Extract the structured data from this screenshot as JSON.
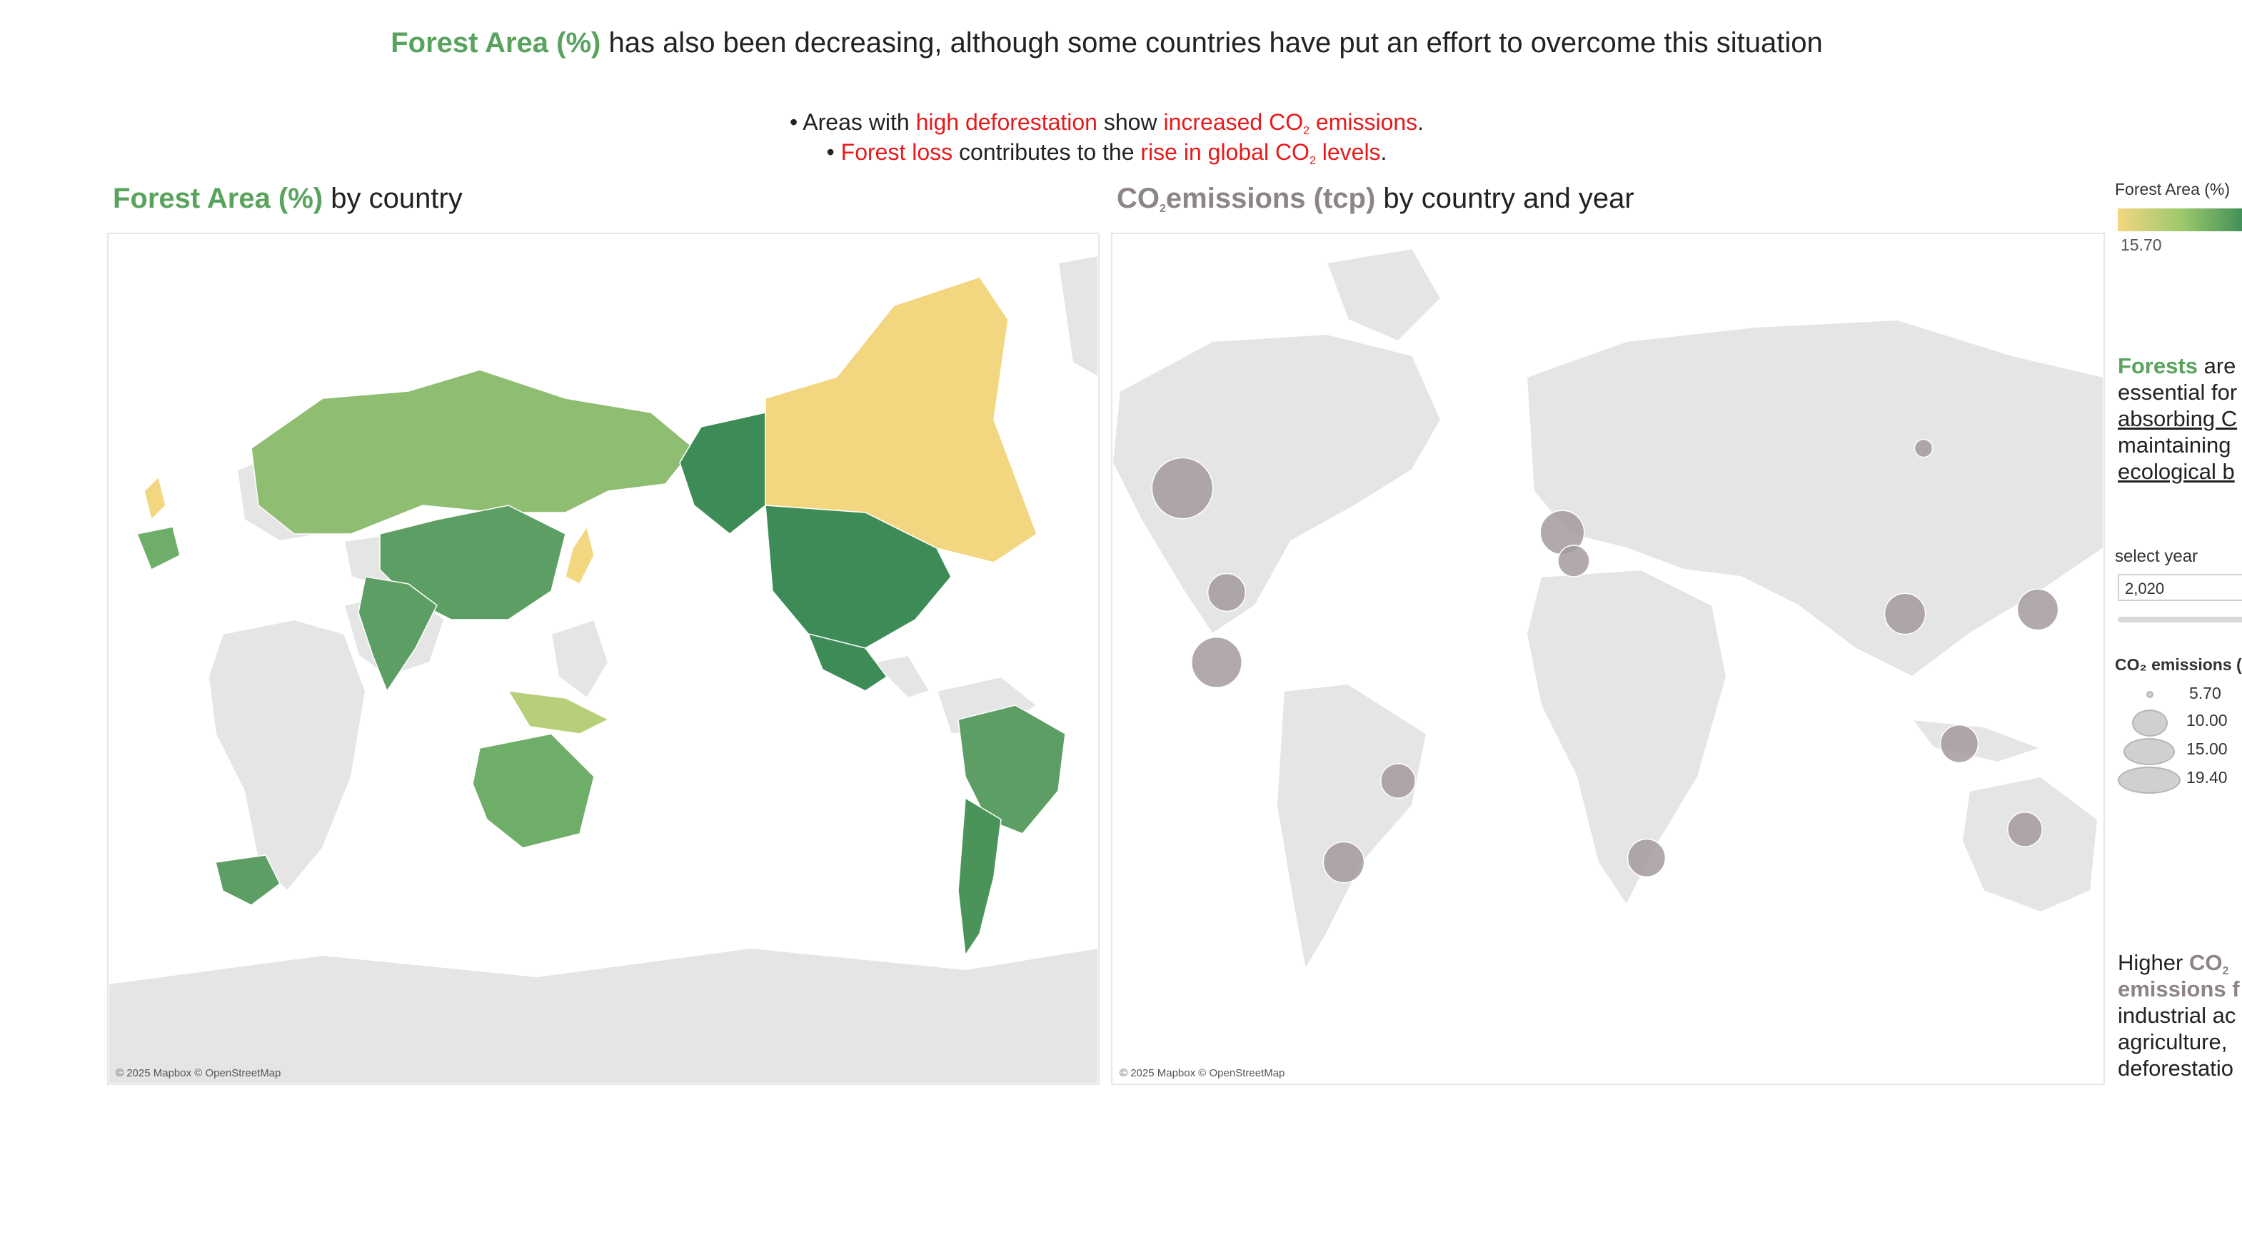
{
  "headline": {
    "highlight": "Forest Area (%)",
    "rest": " has also been decreasing, although some countries have put an effort to overcome this situation"
  },
  "bullets": {
    "b1_pre": "• Areas with ",
    "b1_red1": "high deforestation",
    "b1_mid": " show ",
    "b1_red2": "increased CO",
    "b1_sub": "2",
    "b1_red3": " emissions",
    "b1_end": ".",
    "b2_pre": "• ",
    "b2_red1": "Forest loss",
    "b2_mid": " contributes to the ",
    "b2_red2": "rise in global CO",
    "b2_sub": "2",
    "b2_red3": " levels",
    "b2_end": "."
  },
  "left_panel": {
    "title_highlight": "Forest Area (%)",
    "title_rest": " by country",
    "credit": "© 2025 Mapbox © OpenStreetMap"
  },
  "right_panel": {
    "title_co": "CO",
    "title_sub": "2",
    "title_highlight": "emissions (tcp)",
    "title_rest": " by country and year",
    "credit": "© 2025 Mapbox © OpenStreetMap"
  },
  "legend": {
    "color_title": "Forest Area (%)",
    "color_min": "15.70",
    "colors": {
      "low": "#f3d680",
      "mid": "#9cc96b",
      "high": "#3d8c57",
      "bubble": "#a39a9b",
      "land": "#e5e5e5"
    },
    "year_label": "select year",
    "year_value": "2,020",
    "size_title": "CO₂ emissions (",
    "size_values": [
      "5.70",
      "10.00",
      "15.00",
      "19.40"
    ]
  },
  "side_text_1": {
    "green": "Forests",
    "l1": " are",
    "l2": "essential for",
    "l3": "absorbing C",
    "l4": "maintaining",
    "l5": "ecological b"
  },
  "side_text_2": {
    "l1": "Higher ",
    "co": "CO",
    "sub": "2",
    "l2": "emissions f",
    "l3": "industrial ac",
    "l4": "agriculture,",
    "l5": "deforestatio"
  },
  "forest_by_country": [
    {
      "country": "Russia",
      "level": "mid"
    },
    {
      "country": "Canada",
      "level": "low"
    },
    {
      "country": "United States",
      "level": "high"
    },
    {
      "country": "Alaska (United States)",
      "level": "high"
    },
    {
      "country": "Mexico",
      "level": "high"
    },
    {
      "country": "China",
      "level": "high"
    },
    {
      "country": "India",
      "level": "high"
    },
    {
      "country": "Brazil",
      "level": "high"
    },
    {
      "country": "Argentina",
      "level": "high"
    },
    {
      "country": "Australia",
      "level": "mid"
    },
    {
      "country": "South Africa",
      "level": "high"
    },
    {
      "country": "France",
      "level": "high"
    },
    {
      "country": "United Kingdom",
      "level": "low"
    },
    {
      "country": "Japan",
      "level": "low"
    },
    {
      "country": "Indonesia",
      "level": "low"
    }
  ],
  "co2_bubbles": [
    {
      "place": "Canada",
      "size": 19.4
    },
    {
      "place": "United States",
      "size": 12
    },
    {
      "place": "Mexico",
      "size": 16
    },
    {
      "place": "United Kingdom",
      "size": 14
    },
    {
      "place": "France",
      "size": 10
    },
    {
      "place": "Russia",
      "size": 5.7
    },
    {
      "place": "China",
      "size": 13
    },
    {
      "place": "Japan",
      "size": 13
    },
    {
      "place": "Indonesia",
      "size": 12
    },
    {
      "place": "Australia",
      "size": 11
    },
    {
      "place": "Brazil",
      "size": 11
    },
    {
      "place": "Argentina",
      "size": 13
    },
    {
      "place": "South Africa",
      "size": 12
    }
  ]
}
